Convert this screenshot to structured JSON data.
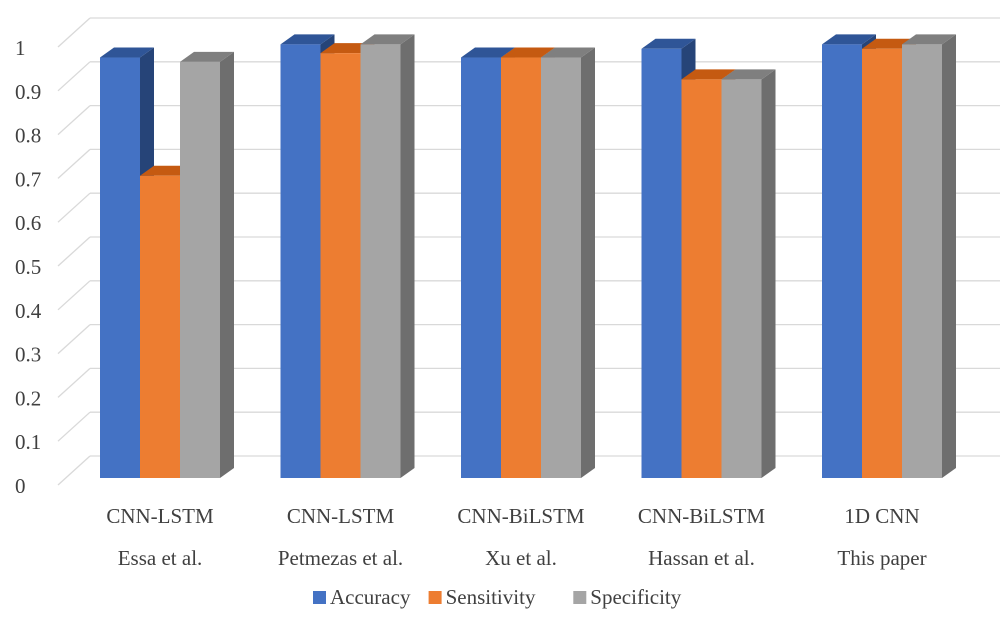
{
  "chart_data": {
    "type": "bar",
    "style": "3d-clustered-column",
    "categories": [
      [
        "CNN-LSTM",
        "Essa et al."
      ],
      [
        "CNN-LSTM",
        "Petmezas et al."
      ],
      [
        "CNN-BiLSTM",
        "Xu et al."
      ],
      [
        "CNN-BiLSTM",
        "Hassan et al."
      ],
      [
        "1D CNN",
        "This paper"
      ]
    ],
    "series": [
      {
        "name": "Accuracy",
        "color": "#4472C4",
        "top_color": "#2F5597",
        "side_color": "#264478",
        "values": [
          0.96,
          0.99,
          0.96,
          0.98,
          0.99
        ]
      },
      {
        "name": "Sensitivity",
        "color": "#ED7D31",
        "top_color": "#C55A11",
        "side_color": "#A9501D",
        "values": [
          0.69,
          0.97,
          0.96,
          0.91,
          0.98
        ]
      },
      {
        "name": "Specificity",
        "color": "#A5A5A5",
        "top_color": "#7F7F7F",
        "side_color": "#6E6E6E",
        "values": [
          0.95,
          0.99,
          0.96,
          0.91,
          0.99
        ]
      }
    ],
    "yticks": [
      "0",
      "0.1",
      "0.2",
      "0.3",
      "0.4",
      "0.5",
      "0.6",
      "0.7",
      "0.8",
      "0.9",
      "1"
    ],
    "ylim": [
      0,
      1
    ],
    "title": "",
    "xlabel": "",
    "ylabel": "",
    "grid": true,
    "legend_position": "bottom"
  }
}
